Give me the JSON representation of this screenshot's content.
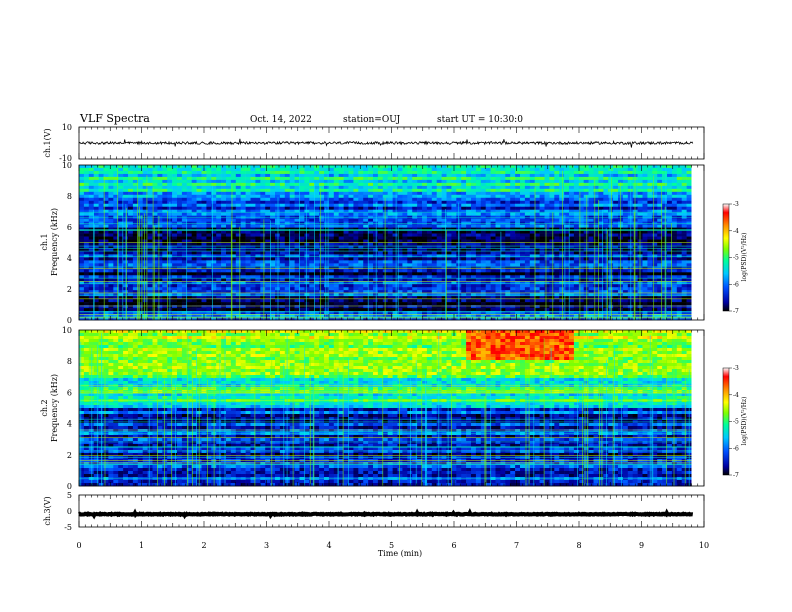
{
  "header": {
    "title": "VLF Spectra",
    "date": "Oct. 14, 2022",
    "station": "station=OUJ",
    "start": "start UT = 10:30:0"
  },
  "colors": {
    "scale": [
      "#000000",
      "#0000a0",
      "#0050ff",
      "#00c8ff",
      "#00ff9a",
      "#7fff00",
      "#ffff00",
      "#ff8c00",
      "#ff0000",
      "#ffffff"
    ]
  },
  "chart_data": [
    {
      "type": "line",
      "panel": "ch1-waveform",
      "ylabel": "ch.1(V)",
      "ylim": [
        -10,
        10
      ],
      "y_ticks": [
        "10",
        "-10"
      ],
      "xlim": [
        0,
        10
      ],
      "approx_level": 0
    },
    {
      "type": "heatmap",
      "panel": "ch1-spectrogram",
      "ylabel_line1": "ch.1",
      "ylabel_line2": "Frequency (kHz)",
      "ylim": [
        0,
        10
      ],
      "y_ticks": [
        "0",
        "2",
        "4",
        "6",
        "8",
        "10"
      ],
      "xlim": [
        0,
        10
      ],
      "data_extent_min": 9.8,
      "colorbar": {
        "label": "log(PSD)(V²/Hz)",
        "range": [
          -7,
          -3
        ],
        "ticks": [
          "-3",
          "-4",
          "-5",
          "-6",
          "-7"
        ]
      },
      "bands_khz": [
        {
          "lo": 8,
          "hi": 10,
          "level": -5.3
        },
        {
          "lo": 6,
          "hi": 8,
          "level": -6.0
        },
        {
          "lo": 5,
          "hi": 6,
          "level": -6.6
        },
        {
          "lo": 3.5,
          "hi": 5,
          "level": -6.3
        },
        {
          "lo": 2.5,
          "hi": 3.5,
          "level": -6.6
        },
        {
          "lo": 1.5,
          "hi": 2.5,
          "level": -6.2
        },
        {
          "lo": 0.5,
          "hi": 1.5,
          "level": -6.7
        },
        {
          "lo": 0,
          "hi": 0.5,
          "level": -6.0
        }
      ]
    },
    {
      "type": "heatmap",
      "panel": "ch2-spectrogram",
      "ylabel_line1": "ch.2",
      "ylabel_line2": "Frequency (kHz)",
      "ylim": [
        0,
        10
      ],
      "y_ticks": [
        "0",
        "2",
        "4",
        "6",
        "8",
        "10"
      ],
      "xlim": [
        0,
        10
      ],
      "data_extent_min": 9.8,
      "colorbar": {
        "label": "log(PSD)(V²/Hz)",
        "range": [
          -7,
          -3
        ],
        "ticks": [
          "-3",
          "-4",
          "-5",
          "-6",
          "-7"
        ]
      },
      "bands_khz": [
        {
          "lo": 7,
          "hi": 10,
          "level": -4.5
        },
        {
          "lo": 5,
          "hi": 7,
          "level": -5.0
        },
        {
          "lo": 3,
          "hi": 5,
          "level": -6.2
        },
        {
          "lo": 1.5,
          "hi": 3,
          "level": -6.4
        },
        {
          "lo": 0,
          "hi": 1.5,
          "level": -6.3
        }
      ],
      "enhanced_region": {
        "t0": 6.2,
        "t1": 7.9,
        "f0": 8,
        "f1": 10,
        "level": -3.3
      }
    },
    {
      "type": "line",
      "panel": "ch3-waveform",
      "ylabel": "ch.3(V)",
      "ylim": [
        -5,
        5
      ],
      "y_ticks": [
        "5",
        "0",
        "-5"
      ],
      "xlim": [
        0,
        10
      ],
      "approx_level": -1.0
    }
  ],
  "xaxis": {
    "label": "Time (min)",
    "ticks": [
      "0",
      "1",
      "2",
      "3",
      "4",
      "5",
      "6",
      "7",
      "8",
      "9",
      "10"
    ]
  }
}
